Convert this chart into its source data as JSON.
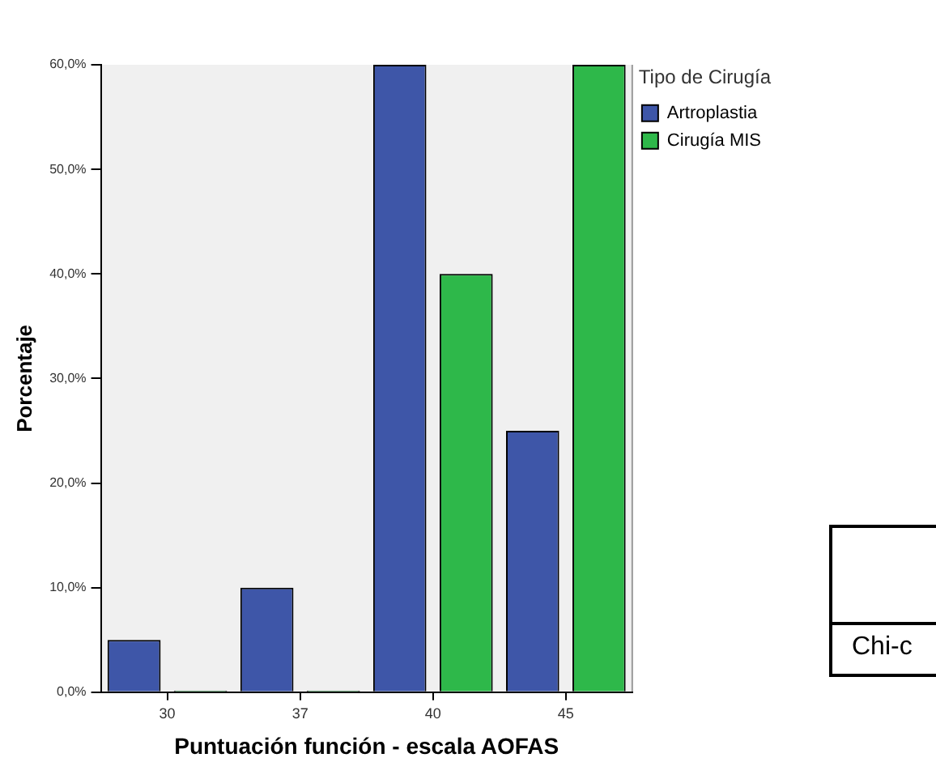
{
  "chart_data": {
    "type": "bar",
    "xlabel": "Puntuación función - escala AOFAS",
    "ylabel": "Porcentaje",
    "legend_title": "Tipo de Cirugía",
    "categories": [
      "30",
      "37",
      "40",
      "45"
    ],
    "series": [
      {
        "name": "Artroplastia",
        "color": "#3e56a8",
        "values": [
          5,
          10,
          60,
          25
        ]
      },
      {
        "name": "Cirugía MIS",
        "color": "#2eb84a",
        "values": [
          0,
          0,
          40,
          60
        ]
      }
    ],
    "ylim": [
      0,
      60
    ],
    "yticks": [
      {
        "value": 0,
        "label": "0,0%"
      },
      {
        "value": 10,
        "label": "10,0%"
      },
      {
        "value": 20,
        "label": "20,0%"
      },
      {
        "value": 30,
        "label": "30,0%"
      },
      {
        "value": 40,
        "label": "40,0%"
      },
      {
        "value": 50,
        "label": "50,0%"
      },
      {
        "value": 60,
        "label": "60,0%"
      }
    ],
    "grid": false,
    "legend": "top right",
    "annotations": [
      "Chi-c"
    ]
  }
}
